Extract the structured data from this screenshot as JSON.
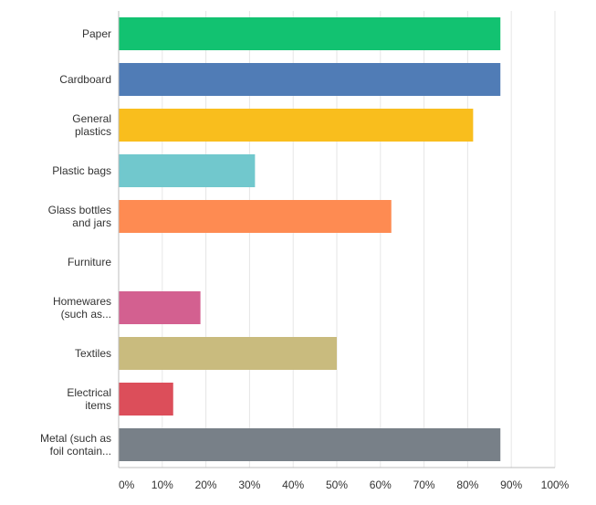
{
  "chart_data": {
    "type": "bar",
    "orientation": "horizontal",
    "categories": [
      [
        "Paper"
      ],
      [
        "Cardboard"
      ],
      [
        "General",
        "plastics"
      ],
      [
        "Plastic bags"
      ],
      [
        "Glass bottles",
        "and jars"
      ],
      [
        "Furniture"
      ],
      [
        "Homewares",
        "(such as..."
      ],
      [
        "Textiles"
      ],
      [
        "Electrical",
        "items"
      ],
      [
        "Metal (such as",
        "foil contain..."
      ]
    ],
    "values": [
      87.5,
      87.5,
      81.25,
      31.25,
      62.5,
      0,
      18.75,
      50,
      12.5,
      87.5
    ],
    "colors": [
      "#12c271",
      "#507cb6",
      "#f9be1d",
      "#71c8cd",
      "#fe8b52",
      "#b2bfcc",
      "#d36090",
      "#c9bb7e",
      "#dc4e5a",
      "#788088"
    ],
    "x_ticks": [
      "0%",
      "10%",
      "20%",
      "30%",
      "40%",
      "50%",
      "60%",
      "70%",
      "80%",
      "90%",
      "100%"
    ],
    "xlim": [
      0,
      100
    ],
    "grid": true,
    "title": "",
    "xlabel": "",
    "ylabel": ""
  }
}
